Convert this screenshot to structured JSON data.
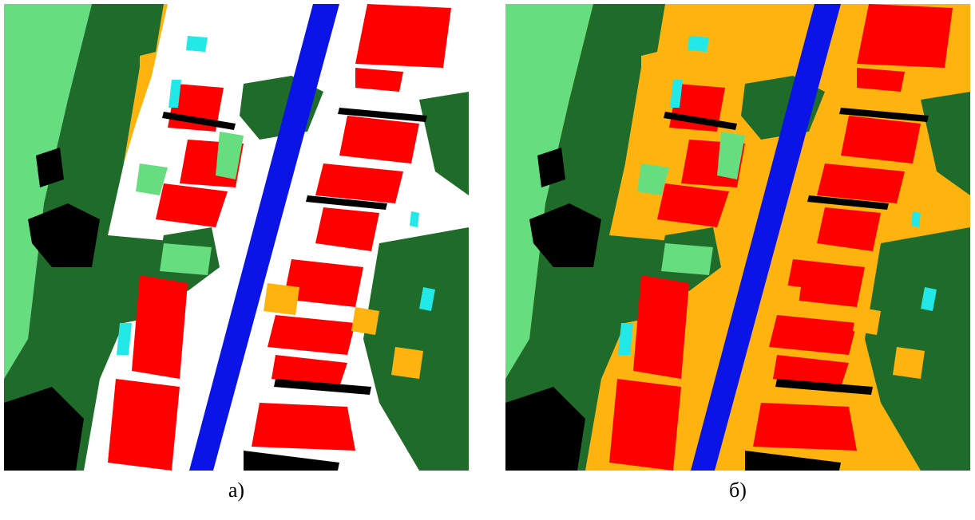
{
  "figures": [
    {
      "caption": "а)"
    },
    {
      "caption": "б)"
    }
  ]
}
